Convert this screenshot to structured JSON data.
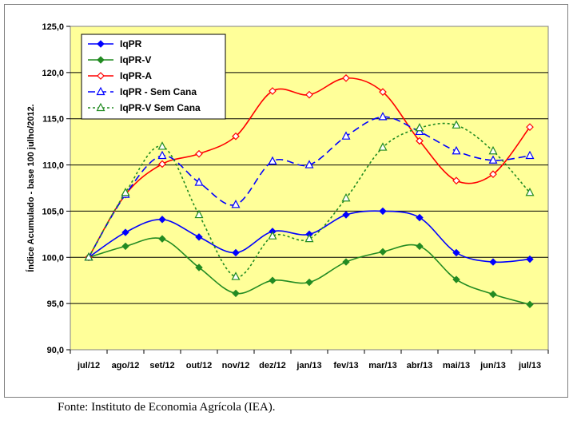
{
  "chart_data": {
    "type": "line",
    "title": "",
    "ylabel": "Índice Acumulado - base 100 julho/2012.",
    "xlabel": "",
    "categories": [
      "jul/12",
      "ago/12",
      "set/12",
      "out/12",
      "nov/12",
      "dez/12",
      "jan/13",
      "fev/13",
      "mar/13",
      "abr/13",
      "mai/13",
      "jun/13",
      "jul/13"
    ],
    "ylim": [
      90,
      125
    ],
    "yticks": [
      90,
      95,
      100,
      105,
      110,
      115,
      120,
      125
    ],
    "ytick_labels": [
      "90,0",
      "95,0",
      "100,0",
      "105,0",
      "110,0",
      "115,0",
      "120,0",
      "125,0"
    ],
    "grid": "horizontal",
    "legend_position": "top-left",
    "background_color": "#ffff99",
    "series": [
      {
        "name": "IqPR",
        "color": "#0000ff",
        "marker": "diamond",
        "dash": "solid",
        "values": [
          100.0,
          102.7,
          104.1,
          102.2,
          100.5,
          102.8,
          102.5,
          104.6,
          105.0,
          104.3,
          100.5,
          99.5,
          99.8
        ]
      },
      {
        "name": "IqPR-V",
        "color": "#228b22",
        "marker": "diamond",
        "dash": "solid",
        "values": [
          100.0,
          101.2,
          102.0,
          98.9,
          96.1,
          97.5,
          97.3,
          99.5,
          100.6,
          101.2,
          97.6,
          96.0,
          94.9
        ]
      },
      {
        "name": "IqPR-A",
        "color": "#ff0000",
        "marker": "open-diamond",
        "dash": "solid",
        "values": [
          100.0,
          106.8,
          110.1,
          111.2,
          113.1,
          118.0,
          117.6,
          119.4,
          117.9,
          112.6,
          108.3,
          109.0,
          114.1
        ]
      },
      {
        "name": "IqPR - Sem Cana",
        "color": "#0000ff",
        "marker": "open-triangle",
        "dash": "long",
        "values": [
          100.0,
          106.8,
          111.0,
          108.1,
          105.7,
          110.4,
          110.0,
          113.1,
          115.2,
          113.6,
          111.5,
          110.5,
          111.0
        ]
      },
      {
        "name": "IqPR-V Sem Cana",
        "color": "#228b22",
        "marker": "open-triangle",
        "dash": "short",
        "values": [
          100.0,
          107.0,
          112.0,
          104.6,
          97.9,
          102.3,
          102.0,
          106.4,
          111.9,
          114.0,
          114.3,
          111.5,
          107.0
        ]
      }
    ]
  },
  "source_note": "Fonte: Instituto de Economia Agrícola (IEA)."
}
